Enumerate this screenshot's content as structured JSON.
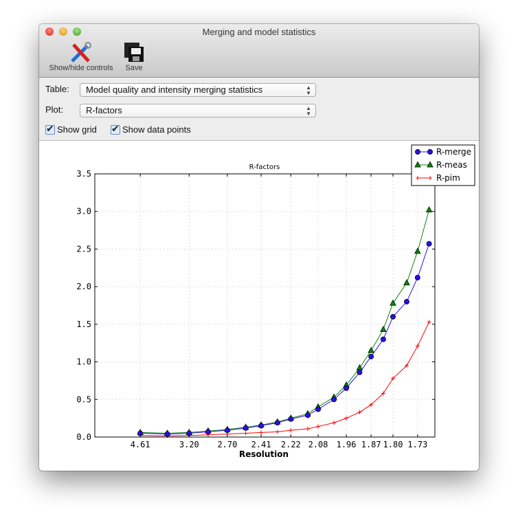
{
  "window": {
    "title": "Merging and model statistics"
  },
  "toolbar": {
    "show_hide_label": "Show/hide controls",
    "save_label": "Save"
  },
  "controls": {
    "table_label": "Table:",
    "table_value": "Model quality and intensity merging statistics",
    "plot_label": "Plot:",
    "plot_value": "R-factors",
    "show_grid_label": "Show grid",
    "show_grid": true,
    "show_points_label": "Show data points",
    "show_points": true
  },
  "chart_data": {
    "type": "line",
    "title": "R-factors",
    "xlabel": "Resolution",
    "ylabel": "",
    "x_scale": "1/d^2",
    "xlim_inv_d2": [
      0,
      0.352
    ],
    "ylim": [
      0,
      3.5
    ],
    "grid": true,
    "legend": "top-right",
    "xtick_labels": [
      "4.61",
      "3.20",
      "2.70",
      "2.41",
      "2.22",
      "2.08",
      "1.96",
      "1.87",
      "1.80",
      "1.73"
    ],
    "ytick_labels": [
      "0.0",
      "0.5",
      "1.0",
      "1.5",
      "2.0",
      "2.5",
      "3.0",
      "3.5"
    ],
    "x": [
      4.61,
      3.65,
      3.2,
      2.92,
      2.7,
      2.53,
      2.41,
      2.3,
      2.22,
      2.13,
      2.08,
      2.01,
      1.96,
      1.91,
      1.87,
      1.83,
      1.8,
      1.76,
      1.73,
      1.7
    ],
    "series": [
      {
        "name": "R-merge",
        "color": "#2a10e8",
        "marker": "circle",
        "values": [
          0.05,
          0.04,
          0.05,
          0.07,
          0.09,
          0.12,
          0.15,
          0.19,
          0.24,
          0.29,
          0.37,
          0.5,
          0.65,
          0.86,
          1.07,
          1.3,
          1.6,
          1.8,
          2.12,
          2.57
        ]
      },
      {
        "name": "R-meas",
        "color": "#128012",
        "marker": "triangle",
        "values": [
          0.06,
          0.05,
          0.06,
          0.08,
          0.1,
          0.13,
          0.16,
          0.2,
          0.25,
          0.31,
          0.4,
          0.53,
          0.69,
          0.92,
          1.15,
          1.43,
          1.78,
          2.05,
          2.47,
          3.02
        ]
      },
      {
        "name": "R-pim",
        "color": "#ff0000",
        "marker": "plus",
        "values": [
          0.02,
          0.015,
          0.02,
          0.03,
          0.04,
          0.05,
          0.06,
          0.07,
          0.09,
          0.11,
          0.14,
          0.19,
          0.25,
          0.33,
          0.43,
          0.58,
          0.78,
          0.95,
          1.21,
          1.53
        ]
      }
    ]
  }
}
